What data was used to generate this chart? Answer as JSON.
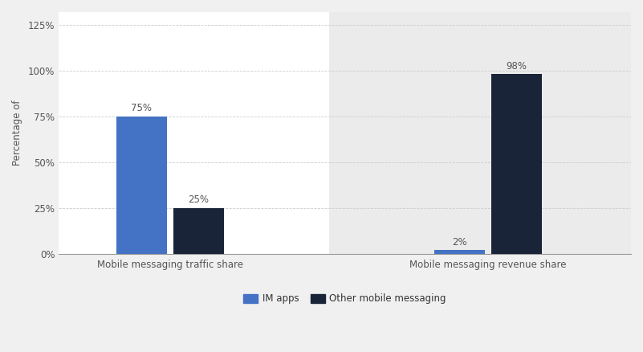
{
  "groups": [
    "Mobile messaging traffic share",
    "Mobile messaging revenue share"
  ],
  "im_apps_values": [
    75,
    2
  ],
  "other_values": [
    25,
    98
  ],
  "im_apps_color": "#4472c4",
  "other_color": "#1a2438",
  "ylabel": "Percentage of",
  "yticks": [
    0,
    25,
    50,
    75,
    100,
    125
  ],
  "ytick_labels": [
    "0%",
    "25%",
    "50%",
    "75%",
    "100%",
    "125%"
  ],
  "ylim": [
    0,
    132
  ],
  "bar_width": 0.32,
  "legend_labels": [
    "IM apps",
    "Other mobile messaging"
  ],
  "background_color": "#f0f0f0",
  "plot_bg_left": "#ffffff",
  "plot_bg_right": "#ebebeb",
  "tick_fontsize": 8.5,
  "ylabel_fontsize": 8.5,
  "bar_label_fontsize": 8.5,
  "grid_color": "#cccccc",
  "text_color": "#555555"
}
